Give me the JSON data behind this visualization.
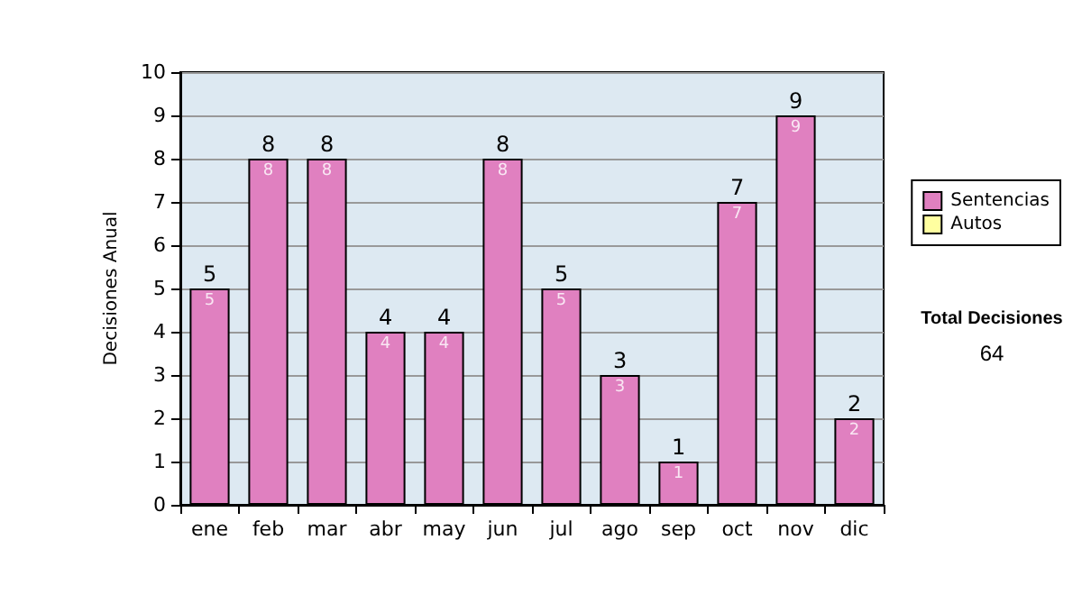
{
  "chart_data": {
    "type": "bar",
    "ylabel": "Decisiones Anual",
    "categories": [
      "ene",
      "feb",
      "mar",
      "abr",
      "may",
      "jun",
      "jul",
      "ago",
      "sep",
      "oct",
      "nov",
      "dic"
    ],
    "series": [
      {
        "name": "Sentencias",
        "color": "#e080c0",
        "values": [
          5,
          8,
          8,
          4,
          4,
          8,
          5,
          3,
          1,
          7,
          9,
          2
        ]
      },
      {
        "name": "Autos",
        "color": "#ffffa0",
        "values": [
          null,
          null,
          null,
          null,
          null,
          null,
          null,
          null,
          null,
          null,
          null,
          null
        ]
      }
    ],
    "ylim": [
      0,
      10
    ],
    "yticks": [
      0,
      1,
      2,
      3,
      4,
      5,
      6,
      7,
      8,
      9,
      10
    ],
    "grid": "y",
    "legend": "right",
    "data_labels": true,
    "annotations": [
      "Total Decisiones",
      "64",
      {
        "text": "5",
        "x": "ene",
        "y": 5
      },
      {
        "text": "8",
        "x": "feb",
        "y": 8
      },
      {
        "text": "8",
        "x": "mar",
        "y": 8
      },
      {
        "text": "4",
        "x": "abr",
        "y": 4
      },
      {
        "text": "4",
        "x": "may",
        "y": 4
      },
      {
        "text": "8",
        "x": "jun",
        "y": 8
      },
      {
        "text": "5",
        "x": "jul",
        "y": 5
      },
      {
        "text": "3",
        "x": "ago",
        "y": 3
      },
      {
        "text": "1",
        "x": "sep",
        "y": 1
      },
      {
        "text": "7",
        "x": "oct",
        "y": 7
      },
      {
        "text": "9",
        "x": "nov",
        "y": 9
      },
      {
        "text": "2",
        "x": "dic",
        "y": 2
      }
    ]
  }
}
